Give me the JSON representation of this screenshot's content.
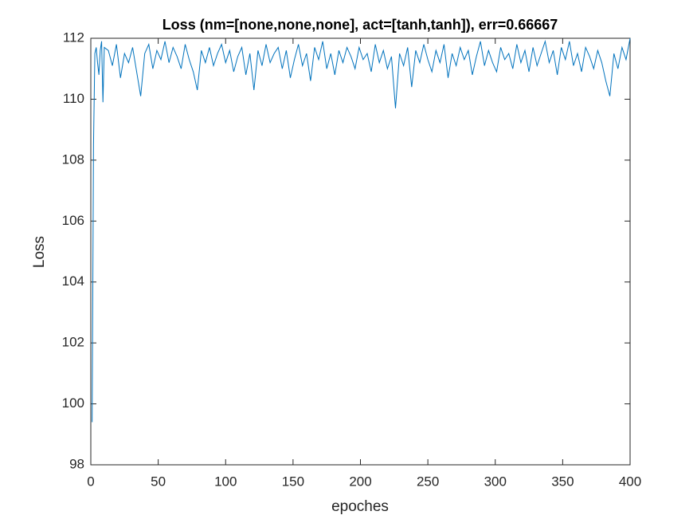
{
  "chart_data": {
    "type": "line",
    "title": "Loss (nm=[none,none,none], act=[tanh,tanh]), err=0.66667",
    "x_label": "epoches",
    "y_label": "Loss",
    "x": [
      1,
      2,
      3,
      4,
      5,
      6,
      7,
      8,
      9,
      10,
      13,
      16,
      19,
      22,
      25,
      28,
      31,
      34,
      37,
      40,
      43,
      46,
      49,
      52,
      55,
      58,
      61,
      64,
      67,
      70,
      73,
      76,
      79,
      82,
      85,
      88,
      91,
      94,
      97,
      100,
      103,
      106,
      109,
      112,
      115,
      118,
      121,
      124,
      127,
      130,
      133,
      136,
      139,
      142,
      145,
      148,
      151,
      154,
      157,
      160,
      163,
      166,
      169,
      172,
      175,
      178,
      181,
      184,
      187,
      190,
      193,
      196,
      199,
      202,
      205,
      208,
      211,
      214,
      217,
      220,
      223,
      226,
      229,
      232,
      235,
      238,
      241,
      244,
      247,
      250,
      253,
      256,
      259,
      262,
      265,
      268,
      271,
      274,
      277,
      280,
      283,
      286,
      289,
      292,
      295,
      298,
      301,
      304,
      307,
      310,
      313,
      316,
      319,
      322,
      325,
      328,
      331,
      334,
      337,
      340,
      343,
      346,
      349,
      352,
      355,
      358,
      361,
      364,
      367,
      370,
      373,
      376,
      379,
      382,
      385,
      388,
      391,
      394,
      397,
      400
    ],
    "series": [
      {
        "name": "Loss",
        "color": "#0072bd",
        "values": [
          99.4,
          108.5,
          111.5,
          111.7,
          111.2,
          110.8,
          111.6,
          111.9,
          109.9,
          111.7,
          111.6,
          111.1,
          111.8,
          110.7,
          111.5,
          111.2,
          111.7,
          110.9,
          110.1,
          111.5,
          111.8,
          111.0,
          111.6,
          111.3,
          111.9,
          111.2,
          111.7,
          111.4,
          111.0,
          111.8,
          111.3,
          110.9,
          110.3,
          111.6,
          111.2,
          111.7,
          111.1,
          111.5,
          111.8,
          111.2,
          111.6,
          110.9,
          111.4,
          111.7,
          110.8,
          111.5,
          110.3,
          111.6,
          111.1,
          111.8,
          111.2,
          111.5,
          111.7,
          111.0,
          111.6,
          110.7,
          111.3,
          111.8,
          111.1,
          111.5,
          110.6,
          111.7,
          111.3,
          111.9,
          111.0,
          111.5,
          110.8,
          111.6,
          111.2,
          111.7,
          111.4,
          111.0,
          111.7,
          111.3,
          111.5,
          110.9,
          111.8,
          111.2,
          111.6,
          111.0,
          111.4,
          109.7,
          111.5,
          111.1,
          111.7,
          110.4,
          111.6,
          111.2,
          111.8,
          111.3,
          110.9,
          111.6,
          111.2,
          111.8,
          110.7,
          111.5,
          111.1,
          111.7,
          111.3,
          111.6,
          110.8,
          111.4,
          111.9,
          111.1,
          111.6,
          111.2,
          110.9,
          111.7,
          111.3,
          111.5,
          111.0,
          111.8,
          111.2,
          111.6,
          110.9,
          111.7,
          111.1,
          111.5,
          111.9,
          111.2,
          111.6,
          110.8,
          111.7,
          111.3,
          111.9,
          111.1,
          111.5,
          110.9,
          111.7,
          111.4,
          111.0,
          111.6,
          111.2,
          110.6,
          110.1,
          111.5,
          111.0,
          111.7,
          111.3,
          112.0
        ]
      }
    ],
    "xlim": [
      0,
      400
    ],
    "xticks": [
      0,
      50,
      100,
      150,
      200,
      250,
      300,
      350,
      400
    ],
    "ylim": [
      98,
      112
    ],
    "yticks": [
      98,
      100,
      102,
      104,
      106,
      108,
      110,
      112
    ]
  }
}
